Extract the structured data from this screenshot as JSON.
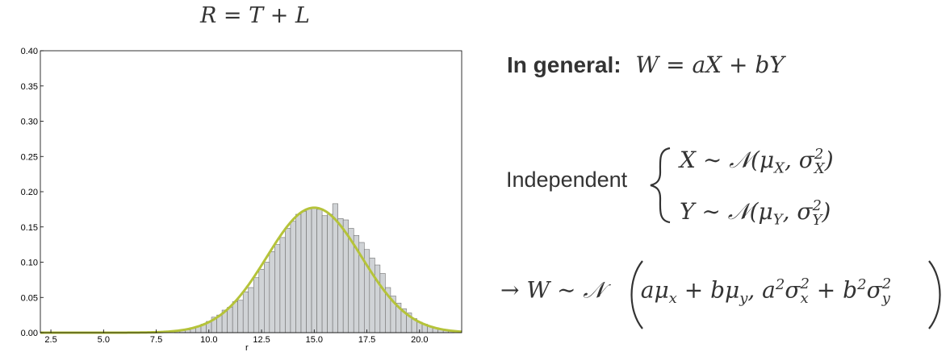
{
  "title": "R = T + L",
  "general": {
    "label": "In general:",
    "formula": "W = aX + bY"
  },
  "independent": {
    "label": "Independent",
    "x": "X ∼ 𝒩(μ_X, σ²_X)",
    "y": "Y ∼ 𝒩(μ_Y, σ²_Y)"
  },
  "result": "→ W ∼ 𝒩 ( aμ_x + bμ_y, a²σ²_x + b²σ²_y )",
  "colors": {
    "bar_fill": "#d0d3d6",
    "bar_stroke": "#707070",
    "curve": "#b5c33a"
  },
  "chart_data": {
    "type": "bar",
    "title": "R = T + L",
    "xlabel": "r",
    "ylabel": "",
    "xlim": [
      2,
      22
    ],
    "ylim": [
      0,
      0.4
    ],
    "xticks": [
      "2.5",
      "5.0",
      "7.5",
      "10.0",
      "12.5",
      "15.0",
      "17.5",
      "20.0"
    ],
    "yticks": [
      "0.00",
      "0.05",
      "0.10",
      "0.15",
      "0.20",
      "0.25",
      "0.30",
      "0.35",
      "0.40"
    ],
    "grid": false,
    "bin_width": 0.25,
    "bins": [
      {
        "x": 8.5,
        "y": 0.002
      },
      {
        "x": 8.75,
        "y": 0.003
      },
      {
        "x": 9.0,
        "y": 0.004
      },
      {
        "x": 9.25,
        "y": 0.006
      },
      {
        "x": 9.5,
        "y": 0.009
      },
      {
        "x": 9.75,
        "y": 0.012
      },
      {
        "x": 10.0,
        "y": 0.016
      },
      {
        "x": 10.25,
        "y": 0.022
      },
      {
        "x": 10.5,
        "y": 0.025
      },
      {
        "x": 10.75,
        "y": 0.032
      },
      {
        "x": 11.0,
        "y": 0.036
      },
      {
        "x": 11.25,
        "y": 0.044
      },
      {
        "x": 11.5,
        "y": 0.046
      },
      {
        "x": 11.75,
        "y": 0.058
      },
      {
        "x": 12.0,
        "y": 0.064
      },
      {
        "x": 12.25,
        "y": 0.078
      },
      {
        "x": 12.5,
        "y": 0.09
      },
      {
        "x": 12.75,
        "y": 0.1
      },
      {
        "x": 13.0,
        "y": 0.115
      },
      {
        "x": 13.25,
        "y": 0.125
      },
      {
        "x": 13.5,
        "y": 0.135
      },
      {
        "x": 13.75,
        "y": 0.148
      },
      {
        "x": 14.0,
        "y": 0.158
      },
      {
        "x": 14.25,
        "y": 0.168
      },
      {
        "x": 14.5,
        "y": 0.172
      },
      {
        "x": 14.75,
        "y": 0.176
      },
      {
        "x": 15.0,
        "y": 0.178
      },
      {
        "x": 15.25,
        "y": 0.175
      },
      {
        "x": 15.5,
        "y": 0.166
      },
      {
        "x": 15.75,
        "y": 0.168
      },
      {
        "x": 16.0,
        "y": 0.183
      },
      {
        "x": 16.25,
        "y": 0.162
      },
      {
        "x": 16.5,
        "y": 0.16
      },
      {
        "x": 16.75,
        "y": 0.148
      },
      {
        "x": 17.0,
        "y": 0.138
      },
      {
        "x": 17.25,
        "y": 0.128
      },
      {
        "x": 17.5,
        "y": 0.118
      },
      {
        "x": 17.75,
        "y": 0.106
      },
      {
        "x": 18.0,
        "y": 0.096
      },
      {
        "x": 18.25,
        "y": 0.084
      },
      {
        "x": 18.5,
        "y": 0.064
      },
      {
        "x": 18.75,
        "y": 0.052
      },
      {
        "x": 19.0,
        "y": 0.042
      },
      {
        "x": 19.25,
        "y": 0.034
      },
      {
        "x": 19.5,
        "y": 0.028
      },
      {
        "x": 19.75,
        "y": 0.02
      },
      {
        "x": 20.0,
        "y": 0.015
      },
      {
        "x": 20.25,
        "y": 0.012
      },
      {
        "x": 20.5,
        "y": 0.009
      },
      {
        "x": 20.75,
        "y": 0.007
      },
      {
        "x": 21.0,
        "y": 0.005
      },
      {
        "x": 21.25,
        "y": 0.003
      },
      {
        "x": 21.5,
        "y": 0.002
      }
    ],
    "curve": {
      "type": "normal",
      "mean": 15.0,
      "sd": 2.25
    }
  }
}
